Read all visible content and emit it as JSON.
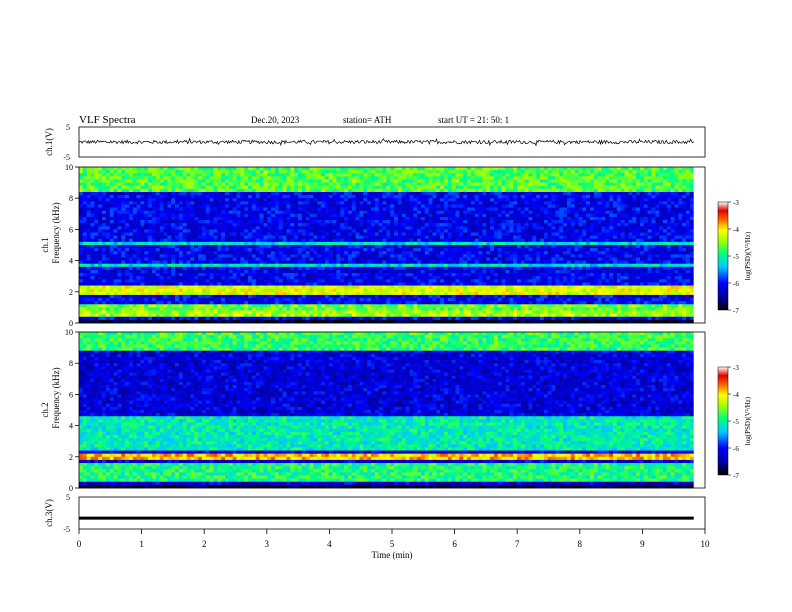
{
  "header": {
    "title": "VLF  Spectra",
    "date": "Dec.20, 2023",
    "station": "station= ATH",
    "start_ut": "start  UT  =    21: 50: 1"
  },
  "chart_data": [
    {
      "id": "ch1-waveform",
      "type": "line",
      "ylabel": "ch.1(V)",
      "ylim": [
        -5,
        5
      ],
      "y_ticks": [
        "5",
        "-5"
      ],
      "xlim": [
        0,
        10
      ],
      "x_data_end": 9.82,
      "description_values": {
        "baseline": 0,
        "typical_amplitude": 0.6
      },
      "color": "#000000"
    },
    {
      "id": "ch1-spectrogram",
      "type": "heatmap",
      "ylabel": "ch.1\nFrequency  (kHz)",
      "ylabel_lines": [
        "ch.1",
        "Frequency  (kHz)"
      ],
      "ylim": [
        0,
        10
      ],
      "y_ticks": [
        "0",
        "2",
        "4",
        "6",
        "8",
        "10"
      ],
      "xlim": [
        0,
        10
      ],
      "x_data_end": 9.82,
      "colorbar": {
        "label": "log(PSD)(V²/Hz)",
        "range": [
          -7,
          -3
        ],
        "ticks": [
          "-3",
          "-4",
          "-5",
          "-6",
          "-7"
        ]
      },
      "bands": [
        {
          "from": 0,
          "to": 0.3,
          "level": -6.9
        },
        {
          "from": 0.5,
          "to": 0.7,
          "level": -4.4
        },
        {
          "from": 0.9,
          "to": 1.1,
          "level": -4.6
        },
        {
          "from": 1.8,
          "to": 2.4,
          "level": -4.2
        },
        {
          "from": 3.6,
          "to": 3.8,
          "level": -5.2
        },
        {
          "from": 5.0,
          "to": 5.2,
          "level": -5.2
        },
        {
          "from": 8.5,
          "to": 10.0,
          "level": -4.7
        }
      ],
      "background_level": -6.1
    },
    {
      "id": "ch2-spectrogram",
      "type": "heatmap",
      "ylabel_lines": [
        "ch.2",
        "Frequency  (kHz)"
      ],
      "ylim": [
        0,
        10
      ],
      "y_ticks": [
        "0",
        "2",
        "4",
        "6",
        "8",
        "10"
      ],
      "xlim": [
        0,
        10
      ],
      "x_data_end": 9.82,
      "colorbar": {
        "label": "log(PSD)(V²/Hz)",
        "range": [
          -7,
          -3
        ],
        "ticks": [
          "-3",
          "-4",
          "-5",
          "-6",
          "-7"
        ]
      },
      "bands": [
        {
          "from": 0,
          "to": 0.3,
          "level": -6.9
        },
        {
          "from": 0.5,
          "to": 1.6,
          "level": -4.9
        },
        {
          "from": 1.8,
          "to": 2.2,
          "level": -3.9
        },
        {
          "from": 2.5,
          "to": 4.5,
          "level": -5.1
        },
        {
          "from": 8.8,
          "to": 10.0,
          "level": -4.8
        }
      ],
      "background_level": -6.2
    },
    {
      "id": "ch3-waveform",
      "type": "line",
      "ylabel": "ch.3(V)",
      "ylim": [
        -5,
        5
      ],
      "y_ticks": [
        "5",
        "-5"
      ],
      "xlim": [
        0,
        10
      ],
      "x_data_end": 9.82,
      "constant_value": -1.6,
      "color": "#000000"
    }
  ],
  "x_axis": {
    "label": "Time  (min)",
    "ticks": [
      "0",
      "1",
      "2",
      "3",
      "4",
      "5",
      "6",
      "7",
      "8",
      "9",
      "10"
    ]
  }
}
